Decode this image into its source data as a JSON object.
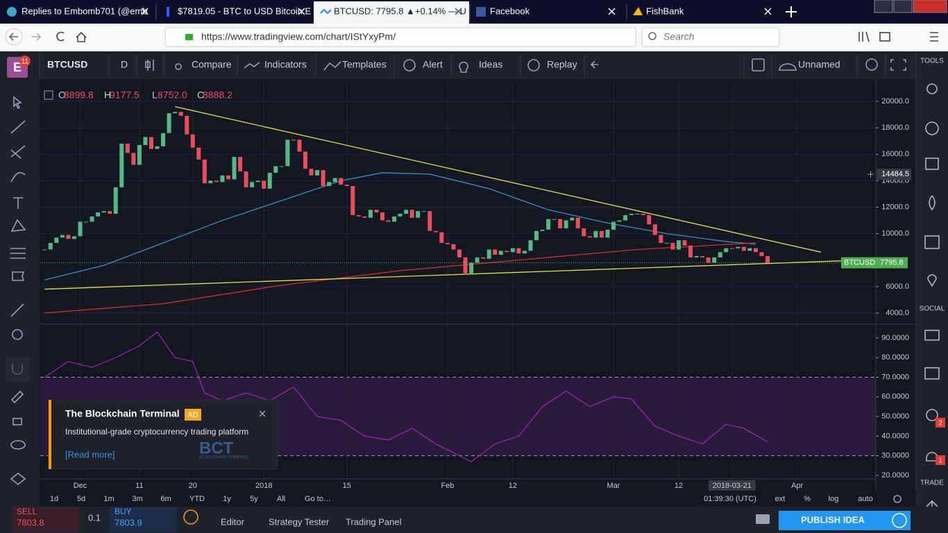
{
  "browser": {
    "tabs": [
      "Replies to Embomb701 (@emb",
      "$7819.05 - BTC to USD Bitcoin E",
      "BTCUSD: 7795.8 ▲+0.14% — U",
      "Facebook",
      "FishBank"
    ],
    "url": "https://www.tradingview.com/chart/IStYxyPm/",
    "search": "Search"
  },
  "toolbar": {
    "notifications": "11",
    "symbol": "BTCUSD",
    "interval": "D",
    "compare": "Compare",
    "indicators": "Indicators",
    "templates": "Templates",
    "alert": "Alert",
    "ideas": "Ideas",
    "replay": "Replay",
    "layout": "Unnamed"
  },
  "sidebar": {
    "tools": "TOOLS",
    "social": "SOCIAL",
    "trade": "TRADE",
    "badges": [
      "2",
      "1"
    ]
  },
  "chart_data": {
    "type": "candlestick",
    "ohlc": {
      "labels": [
        "O",
        "H",
        "L",
        "C"
      ],
      "values": [
        "8899.8",
        "9177.5",
        "8752.0",
        "8888.2"
      ]
    },
    "categories": [
      null,
      null,
      null,
      null,
      null,
      null,
      "Dec",
      null,
      null,
      null,
      null,
      null,
      null,
      null,
      null,
      null,
      "11",
      null,
      null,
      null,
      null,
      null,
      null,
      null,
      null,
      "20",
      null,
      null,
      null,
      null,
      null,
      null,
      null,
      null,
      null,
      null,
      null,
      "2018",
      null,
      null,
      null,
      null,
      null,
      null,
      null,
      null,
      null,
      null,
      null,
      null,
      null,
      "15",
      null,
      null,
      null,
      null,
      null,
      null,
      null,
      null,
      null,
      null,
      null,
      null,
      null,
      null,
      null,
      null,
      "Feb",
      null,
      null,
      null,
      null,
      null,
      null,
      null,
      null,
      null,
      null,
      "12",
      null,
      null,
      null,
      null,
      null,
      null,
      null,
      null,
      null,
      null,
      null,
      null,
      null,
      null,
      null,
      null,
      "Mar",
      null,
      null,
      null,
      null,
      null,
      null,
      null,
      null,
      null,
      null,
      "12",
      null,
      null,
      null,
      null,
      null,
      null,
      null,
      null,
      "2018-03-21",
      null,
      null,
      null,
      null,
      null,
      null,
      null,
      null,
      null,
      null,
      "Apr",
      null,
      null,
      null,
      null,
      null,
      null,
      null,
      null,
      null,
      null,
      null,
      null,
      null
    ],
    "values": [
      8800,
      9300,
      9700,
      9900,
      9600,
      9800,
      10900,
      10900,
      11300,
      11600,
      11700,
      11500,
      13500,
      16800,
      16100,
      15200,
      16700,
      17300,
      16400,
      16600,
      17600,
      19100,
      19200,
      18900,
      17500,
      16500,
      15600,
      13800,
      14000,
      13900,
      14400,
      14100,
      15800,
      14700,
      13500,
      13900,
      14000,
      13400,
      14600,
      15100,
      15100,
      17100,
      17100,
      16200,
      14900,
      14400,
      14800,
      13600,
      13900,
      14200,
      13700,
      13600,
      11400,
      11300,
      11200,
      11800,
      11600,
      11000,
      10900,
      11300,
      11500,
      11800,
      11200,
      11700,
      11700,
      10200,
      10100,
      9300,
      9200,
      8800,
      8200,
      7000,
      7800,
      8200,
      8100,
      8800,
      8400,
      8700,
      8600,
      8900,
      8500,
      8700,
      9500,
      10200,
      10300,
      11100,
      11100,
      10400,
      11000,
      11200,
      10400,
      9800,
      9700,
      10200,
      9700,
      10300,
      10900,
      11000,
      11400,
      11500,
      11500,
      11400,
      10700,
      9900,
      9300,
      9300,
      8800,
      9500,
      9100,
      8200,
      8300,
      8200,
      7800,
      8200,
      8600,
      8899.8,
      8888.2,
      9000,
      8700,
      8900,
      8600,
      8300,
      7795.8,
      null,
      null,
      null,
      null,
      null,
      null,
      null,
      null,
      null,
      null,
      null,
      null,
      null,
      null,
      null,
      null,
      null,
      null
    ],
    "up_color": "#53b987",
    "down_color": "#eb4d5c",
    "ylim": [
      3265,
      21364
    ],
    "yticks": [
      {
        "value": 4000,
        "label": "4000.0"
      },
      {
        "value": 6000,
        "label": "6000.0"
      },
      {
        "value": 10000,
        "label": "10000.0"
      },
      {
        "value": 12000,
        "label": "12000.0"
      },
      {
        "value": 14000,
        "label": "14000.0"
      },
      {
        "value": 16000,
        "label": "16000.0"
      },
      {
        "value": 18000,
        "label": "18000.0"
      },
      {
        "value": 20000,
        "label": "20000.0"
      }
    ],
    "grid": true,
    "crosshair_price": 14484.5,
    "last_price": {
      "label": "BTCUSD",
      "value": 7795.8
    },
    "overlays": [
      {
        "color": "#3a8fc7",
        "x": [
          0,
          10,
          20,
          30,
          40,
          50,
          57,
          65,
          75,
          85,
          95,
          105,
          115,
          120
        ],
        "values": [
          6500,
          7600,
          9300,
          11000,
          12500,
          14000,
          14600,
          14500,
          13400,
          11800,
          10800,
          10000,
          9400,
          9200
        ]
      },
      {
        "color": "#d32f2f",
        "x": [
          0,
          20,
          40,
          60,
          80,
          100,
          120
        ],
        "values": [
          4000,
          4700,
          6100,
          7200,
          8000,
          8800,
          9300
        ]
      },
      {
        "color": "#e8e04a",
        "x": [
          22,
          131
        ],
        "values": [
          19600,
          8600
        ]
      },
      {
        "color": "#e8e04a",
        "x": [
          0,
          135
        ],
        "values": [
          5800,
          7950
        ]
      }
    ],
    "rsi": {
      "color": "#9c27b0",
      "x": [
        0,
        4,
        8,
        12,
        16,
        19,
        22,
        25,
        27,
        30,
        34,
        38,
        42,
        46,
        50,
        54,
        58,
        62,
        66,
        70,
        72,
        76,
        80,
        84,
        88,
        92,
        96,
        99,
        103,
        107,
        111,
        115,
        118,
        122
      ],
      "values": [
        70,
        78,
        75,
        80,
        86,
        93,
        80,
        78,
        62,
        58,
        62,
        58,
        65,
        50,
        48,
        40,
        38,
        44,
        36,
        30,
        27,
        36,
        40,
        55,
        63,
        55,
        60,
        59,
        45,
        40,
        36,
        46,
        44,
        37
      ],
      "ylim": [
        18.2,
        96
      ],
      "band": [
        30,
        70
      ],
      "yticks": [
        {
          "value": 20,
          "label": "20.0000"
        },
        {
          "value": 30,
          "label": "30.0000"
        },
        {
          "value": 40,
          "label": "40.0000"
        },
        {
          "value": 50,
          "label": "50.0000"
        },
        {
          "value": 60,
          "label": "60.0000"
        },
        {
          "value": 70,
          "label": "70.0000"
        },
        {
          "value": 80,
          "label": "80.0000"
        },
        {
          "value": 90,
          "label": "90.0000"
        }
      ]
    }
  },
  "ad": {
    "title": "The Blockchain Terminal",
    "tag": "AD",
    "text": "Institutional-grade cryptocurrency trading platform",
    "link": "[Read more]",
    "logo": "BCT",
    "logo_sub": "BLOCKCHAIN TERMINAL"
  },
  "ranges": [
    "1d",
    "5d",
    "1m",
    "3m",
    "6m",
    "YTD",
    "1y",
    "5y",
    "All",
    "Go to…"
  ],
  "clock": "01:39:30 (UTC)",
  "scale_options": [
    "ext",
    "%",
    "log",
    "auto"
  ],
  "trade": {
    "sell": "SELL",
    "sell_price": "7803.8",
    "qty": "0.1",
    "buy": "BUY",
    "buy_price": "7803.9"
  },
  "bottom_tabs": [
    "Editor",
    "Strategy Tester",
    "Trading Panel"
  ],
  "publish": "PUBLISH IDEA"
}
